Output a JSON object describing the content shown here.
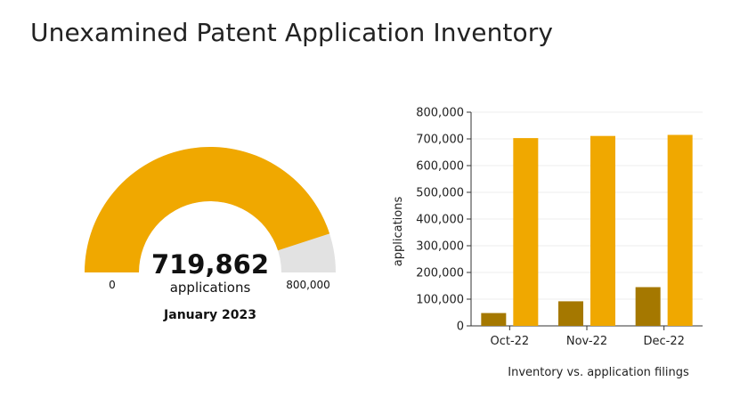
{
  "page": {
    "title": "Unexamined Patent Application Inventory"
  },
  "gauge": {
    "value": 719862,
    "value_label": "719,862",
    "unit_label": "applications",
    "date_label": "January 2023",
    "min": 0,
    "max": 800000,
    "min_label": "0",
    "max_label": "800,000",
    "fill_color": "#f0a800",
    "track_color": "#e2e2e2"
  },
  "chart_data": {
    "type": "bar",
    "categories": [
      "Oct-22",
      "Nov-22",
      "Dec-22"
    ],
    "series": [
      {
        "values": [
          48000,
          92000,
          145000
        ],
        "color": "#a57800"
      },
      {
        "values": [
          703000,
          711000,
          715000
        ],
        "color": "#f0a800"
      }
    ],
    "ylim": [
      0,
      800000
    ],
    "yticks": [
      0,
      100000,
      200000,
      300000,
      400000,
      500000,
      600000,
      700000,
      800000
    ],
    "ytick_labels": [
      "0",
      "100,000",
      "200,000",
      "300,000",
      "400,000",
      "500,000",
      "600,000",
      "700,000",
      "800,000"
    ],
    "ylabel": "applications",
    "xlabel": "",
    "caption": "Inventory vs. application filings",
    "grid": true
  }
}
